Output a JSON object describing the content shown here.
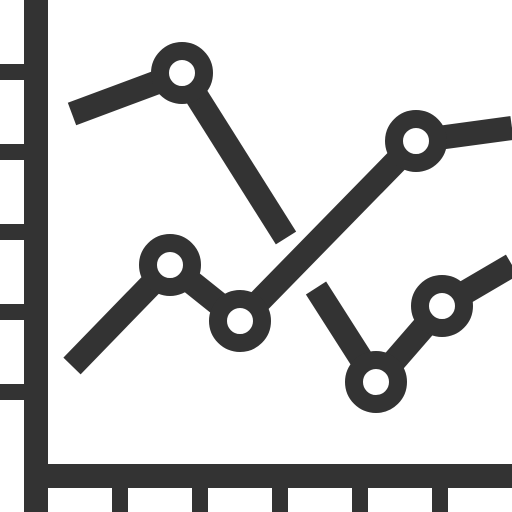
{
  "icon": {
    "name": "line-chart-icon",
    "color": "#333333",
    "background": "#ffffff",
    "series_count": 2,
    "markers_per_series": 3
  }
}
